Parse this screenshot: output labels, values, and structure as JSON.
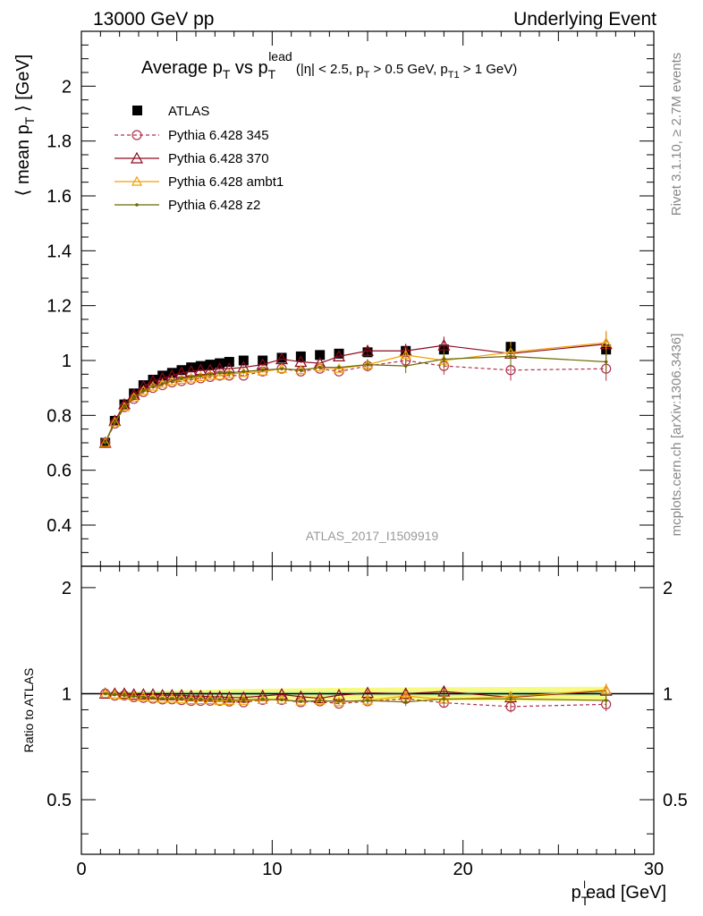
{
  "header": {
    "left": "13000 GeV pp",
    "right": "Underlying Event"
  },
  "side": {
    "rivet": "Rivet 3.1.10, ≥ 2.7M events",
    "mcplots": "mcplots.cern.ch [arXiv:1306.3436]"
  },
  "title": {
    "main": "Average p",
    "main_sub": "T",
    "vs": " vs p",
    "vs_sub": "T",
    "vs_sup": "lead",
    "cut_a": " (|η| < 2.5, p",
    "cut_a_sub": "T",
    "cut_b": " > 0.5 GeV, p",
    "cut_b_sub": "T1",
    "cut_c": " > 1 GeV)"
  },
  "watermark": "ATLAS_2017_I1509919",
  "ylabel_top": {
    "pre": "⟨ mean p",
    "sub": "T",
    "post": " ⟩ [GeV]"
  },
  "ylabel_bottom": "Ratio to ATLAS",
  "xlabel": {
    "pre": "p",
    "sub": "T",
    "sup": "l",
    "post": "ead [GeV]"
  },
  "colors": {
    "atlas": "#000000",
    "p345": "#b0324e",
    "p370": "#8c0a1e",
    "ambt1": "#f0a000",
    "z2": "#6b6b00",
    "band": "#f7fa80",
    "band_inner": "#b8f0a0"
  },
  "chart_data": {
    "type": "scatter",
    "xlim": [
      0,
      30
    ],
    "ylim_top": [
      0.25,
      2.2
    ],
    "ylim_ratio": [
      0.35,
      2.3
    ],
    "x_ticks": [
      "0",
      "10",
      "20",
      "30"
    ],
    "y_ticks_top": [
      "0.4",
      "0.6",
      "0.8",
      "1",
      "1.2",
      "1.4",
      "1.6",
      "1.8",
      "2"
    ],
    "y_ticks_ratio": [
      "0.5",
      "1",
      "2"
    ],
    "x": [
      1.25,
      1.75,
      2.25,
      2.75,
      3.25,
      3.75,
      4.25,
      4.75,
      5.25,
      5.75,
      6.25,
      6.75,
      7.25,
      7.75,
      8.5,
      9.5,
      10.5,
      11.5,
      12.5,
      13.5,
      15.0,
      17.0,
      19.0,
      22.5,
      27.5
    ],
    "series": [
      {
        "name": "ATLAS",
        "values": [
          0.7,
          0.78,
          0.84,
          0.88,
          0.91,
          0.93,
          0.945,
          0.955,
          0.965,
          0.975,
          0.98,
          0.985,
          0.99,
          0.995,
          1.0,
          1.0,
          1.01,
          1.015,
          1.02,
          1.025,
          1.03,
          1.035,
          1.04,
          1.05,
          1.04
        ]
      },
      {
        "name": "Pythia 6.428 345",
        "values": [
          0.7,
          0.77,
          0.83,
          0.86,
          0.885,
          0.9,
          0.91,
          0.92,
          0.925,
          0.93,
          0.935,
          0.94,
          0.945,
          0.945,
          0.945,
          0.96,
          0.97,
          0.96,
          0.97,
          0.96,
          0.98,
          1.0,
          0.98,
          0.965,
          0.97
        ]
      },
      {
        "name": "Pythia 6.428 370",
        "values": [
          0.7,
          0.78,
          0.84,
          0.875,
          0.905,
          0.925,
          0.935,
          0.945,
          0.955,
          0.96,
          0.965,
          0.965,
          0.97,
          0.97,
          0.975,
          0.985,
          1.005,
          0.995,
          0.99,
          1.015,
          1.035,
          1.035,
          1.055,
          1.025,
          1.06
        ]
      },
      {
        "name": "Pythia 6.428 ambt1",
        "values": [
          0.7,
          0.775,
          0.83,
          0.865,
          0.89,
          0.905,
          0.915,
          0.925,
          0.93,
          0.935,
          0.94,
          0.945,
          0.945,
          0.95,
          0.955,
          0.96,
          0.97,
          0.965,
          0.975,
          0.97,
          0.985,
          1.02,
          1.0,
          1.03,
          1.065
        ]
      },
      {
        "name": "Pythia 6.428 z2",
        "values": [
          0.7,
          0.775,
          0.83,
          0.865,
          0.89,
          0.905,
          0.915,
          0.925,
          0.935,
          0.94,
          0.945,
          0.95,
          0.955,
          0.955,
          0.96,
          0.965,
          0.97,
          0.965,
          0.975,
          0.975,
          0.985,
          0.98,
          1.005,
          1.015,
          0.995
        ]
      }
    ],
    "legend_placement": "top-left",
    "grid": false
  }
}
